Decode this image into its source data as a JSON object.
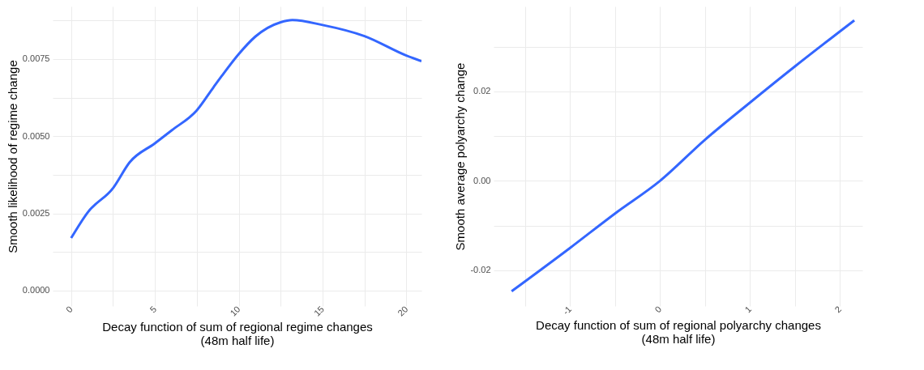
{
  "chart_data": [
    {
      "type": "line",
      "xlabel": "Decay function of sum of regional regime changes\n(48m half life)",
      "ylabel": "Smooth likelihood of regime change",
      "x": [
        0,
        1,
        2.5,
        3.5,
        5,
        6,
        7.5,
        8.5,
        9,
        10,
        11,
        12.5,
        13.2,
        15,
        17.5,
        20,
        20.9
      ],
      "series": [
        {
          "color": "#3366ff",
          "values": [
            0.0017,
            0.00254,
            0.00332,
            0.00416,
            0.00477,
            0.00519,
            0.00584,
            0.00659,
            0.00696,
            0.00766,
            0.00823,
            0.00869,
            0.00876,
            0.0086,
            0.00824,
            0.00761,
            0.00743
          ]
        }
      ],
      "xlim": [
        -1.1,
        20.9
      ],
      "ylim": [
        -0.0005,
        0.0092
      ],
      "xticks": [
        0,
        {
          "value": 2.5,
          "label": null
        },
        5,
        {
          "value": 7.5,
          "label": null
        },
        10,
        {
          "value": 12.5,
          "label": null
        },
        15,
        {
          "value": 17.5,
          "label": null
        },
        20
      ],
      "yticks": [
        {
          "value": 0,
          "label": "0.0000"
        },
        {
          "value": 0.00125,
          "label": null
        },
        {
          "value": 0.0025,
          "label": "0.0025"
        },
        {
          "value": 0.00375,
          "label": null
        },
        {
          "value": 0.005,
          "label": "0.0050"
        },
        {
          "value": 0.00625,
          "label": null
        },
        {
          "value": 0.0075,
          "label": "0.0075"
        },
        {
          "value": 0.00875,
          "label": null
        }
      ],
      "grid": true,
      "legend": false,
      "line_style": "solid",
      "marker": "none"
    },
    {
      "type": "line",
      "xlabel": "Decay function of sum of regional polyarchy changes\n(48m half life)",
      "ylabel": "Smooth average polyarchy change",
      "x": [
        -1.65,
        -1,
        -0.5,
        0,
        0.5,
        1,
        1.5,
        2.16
      ],
      "series": [
        {
          "color": "#3366ff",
          "values": [
            -0.0247,
            -0.015,
            -0.0073,
            0.0,
            0.0092,
            0.0175,
            0.0256,
            0.0359
          ]
        }
      ],
      "xlim": [
        -1.85,
        2.25
      ],
      "ylim": [
        -0.028,
        0.039
      ],
      "xticks": [
        {
          "value": -1.5,
          "label": null
        },
        -1,
        {
          "value": -0.5,
          "label": null
        },
        0,
        {
          "value": 0.5,
          "label": null
        },
        1,
        {
          "value": 1.5,
          "label": null
        },
        2
      ],
      "yticks": [
        {
          "value": -0.02,
          "label": "-0.02"
        },
        {
          "value": -0.01,
          "label": null
        },
        {
          "value": 0,
          "label": "0.00"
        },
        {
          "value": 0.01,
          "label": null
        },
        {
          "value": 0.02,
          "label": "0.02"
        },
        {
          "value": 0.03,
          "label": null
        }
      ],
      "grid": true,
      "legend": false,
      "line_style": "solid",
      "marker": "none"
    }
  ]
}
